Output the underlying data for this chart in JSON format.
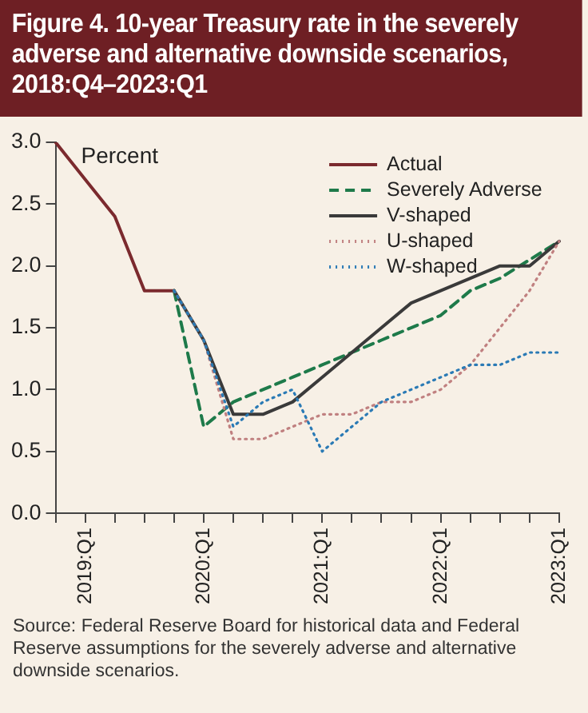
{
  "chart_data": {
    "type": "line",
    "title": "Figure 4. 10-year Treasury rate in the severely adverse and alternative downside scenarios, 2018:Q4–2023:Q1",
    "ylabel": "Percent",
    "categories": [
      null,
      "2019:Q1",
      null,
      null,
      null,
      "2020:Q1",
      null,
      null,
      null,
      "2021:Q1",
      null,
      null,
      null,
      "2022:Q1",
      null,
      null,
      null,
      "2023:Q1"
    ],
    "series": [
      {
        "name": "Actual",
        "color": "#7b2a2e",
        "line_style": "solid",
        "values": [
          3.0,
          2.7,
          2.4,
          1.8,
          1.8,
          null,
          null,
          null,
          null,
          null,
          null,
          null,
          null,
          null,
          null,
          null,
          null,
          null
        ]
      },
      {
        "name": "Severely Adverse",
        "color": "#1e7a4a",
        "line_style": "dashed",
        "values": [
          null,
          null,
          null,
          null,
          1.8,
          0.7,
          0.9,
          1.0,
          1.1,
          1.2,
          1.3,
          1.4,
          1.5,
          1.6,
          1.8,
          1.9,
          2.05,
          2.2
        ]
      },
      {
        "name": "V-shaped",
        "color": "#3a3a3a",
        "line_style": "solid",
        "values": [
          null,
          null,
          null,
          null,
          1.8,
          1.4,
          0.8,
          0.8,
          0.9,
          1.1,
          1.3,
          1.5,
          1.7,
          1.8,
          1.9,
          2.0,
          2.0,
          2.2
        ]
      },
      {
        "name": "U-shaped",
        "color": "#c08080",
        "line_style": "dotted",
        "values": [
          null,
          null,
          null,
          null,
          1.8,
          1.4,
          0.6,
          0.6,
          0.7,
          0.8,
          0.8,
          0.9,
          0.9,
          1.0,
          1.2,
          1.5,
          1.8,
          2.2
        ]
      },
      {
        "name": "W-shaped",
        "color": "#2a7ab5",
        "line_style": "dotted",
        "values": [
          null,
          null,
          null,
          null,
          1.8,
          1.4,
          0.7,
          0.9,
          1.0,
          0.5,
          0.7,
          0.9,
          1.0,
          1.1,
          1.2,
          1.2,
          1.3,
          1.3
        ]
      }
    ],
    "ylim": [
      0,
      3.0
    ],
    "yticks": [
      {
        "value": 0,
        "label": "0.0"
      },
      {
        "value": 0.5,
        "label": "0.5"
      },
      {
        "value": 1,
        "label": "1.0"
      },
      {
        "value": 1.5,
        "label": "1.5"
      },
      {
        "value": 2,
        "label": "2.0"
      },
      {
        "value": 2.5,
        "label": "2.5"
      },
      {
        "value": 3,
        "label": "3.0"
      }
    ],
    "legend": "top right",
    "marker": "none",
    "grid": false,
    "annotations": [
      "Source: Federal Reserve Board for historical data and Federal Reserve assumptions for the severely adverse and alternative downside scenarios."
    ]
  }
}
